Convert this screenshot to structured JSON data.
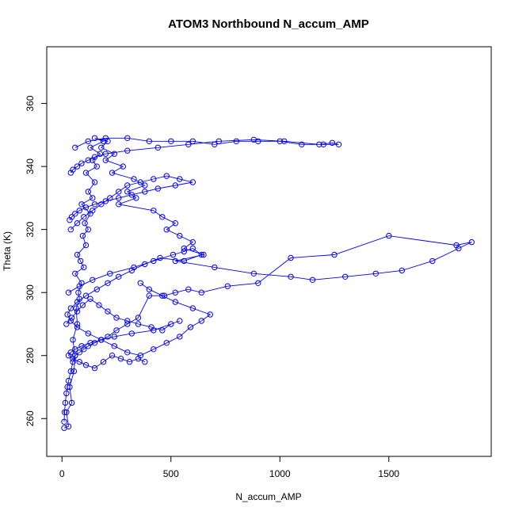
{
  "chart_data": {
    "type": "scatter",
    "title": "ATOM3 Northbound N_accum_AMP",
    "xlabel": "N_accum_AMP",
    "ylabel": "Theta (K)",
    "xlim": [
      -70,
      1970
    ],
    "ylim": [
      248,
      378
    ],
    "x_ticks": [
      0,
      500,
      1000,
      1500
    ],
    "y_ticks": [
      260,
      280,
      300,
      320,
      340,
      360
    ],
    "x_tick_labels": [
      "0",
      "500",
      "1000",
      "1500"
    ],
    "y_tick_labels": [
      "260",
      "280",
      "300",
      "320",
      "340",
      "360"
    ],
    "grid": false,
    "legend": "none",
    "marker": "open-circle",
    "connect_points": true,
    "color": "#0000ff",
    "series": [
      {
        "x": [
          10,
          30,
          20,
          45,
          35,
          55,
          60,
          50,
          70,
          65,
          80,
          75,
          90,
          60,
          100,
          85,
          70,
          110,
          95,
          120,
          105,
          130,
          90,
          140,
          120,
          150,
          110,
          160,
          140,
          175,
          130,
          190,
          150,
          210,
          180,
          240,
          200,
          280,
          230,
          330,
          380,
          300,
          340,
          260,
          420,
          460,
          520,
          480,
          540,
          600,
          560,
          650,
          520,
          700,
          880,
          1050,
          1150,
          1300,
          1440,
          1560,
          1700,
          1820,
          1880,
          1810,
          1500,
          1250,
          1050,
          900,
          760,
          640,
          580,
          520,
          470,
          400,
          350,
          300,
          250,
          210,
          180,
          150,
          120,
          100,
          80,
          60,
          50,
          40,
          30,
          25,
          20,
          15,
          12,
          10
        ],
        "y": [
          257,
          257.5,
          262,
          265,
          270,
          275,
          280,
          285,
          290,
          295,
          298,
          300,
          303,
          306,
          308,
          310,
          312,
          315,
          318,
          320,
          322,
          325,
          328,
          330,
          332,
          335,
          338,
          340,
          342,
          344,
          346,
          348,
          349,
          348,
          346,
          344,
          342,
          340,
          338,
          336,
          334,
          332,
          330,
          328,
          326,
          324,
          322,
          320,
          318,
          316,
          314,
          312,
          310,
          308,
          306,
          305,
          304,
          305,
          306,
          307,
          310,
          314,
          316,
          315,
          318,
          312,
          311,
          303,
          302,
          300,
          301,
          300,
          299,
          299,
          292,
          290,
          288,
          286,
          285,
          284,
          283,
          282,
          281,
          280,
          278,
          275,
          272,
          270,
          268,
          265,
          262,
          259
        ]
      },
      {
        "x": [
          60,
          120,
          200,
          300,
          400,
          500,
          600,
          700,
          800,
          900,
          1000,
          1100,
          1200,
          1270,
          1240,
          1180,
          1020,
          880,
          720,
          580,
          440,
          300,
          200,
          150,
          120,
          90,
          70,
          50,
          40
        ],
        "y": [
          346,
          348,
          349,
          349,
          348,
          348,
          348,
          347,
          348,
          348,
          348,
          347,
          347,
          347,
          347.5,
          347,
          348,
          348.5,
          348,
          347,
          346,
          345,
          344,
          343,
          342,
          341,
          340,
          339,
          338
        ]
      },
      {
        "x": [
          30,
          80,
          140,
          220,
          330,
          420,
          510,
          560,
          600,
          640,
          560,
          450,
          380,
          320,
          260,
          210,
          160,
          110,
          70,
          40,
          25,
          40,
          70,
          120,
          180,
          240,
          300,
          360,
          420,
          480,
          540,
          590,
          640,
          680,
          600,
          520,
          460,
          400,
          360
        ],
        "y": [
          300,
          302,
          304,
          306,
          308,
          310,
          312,
          313,
          314,
          312,
          310,
          311,
          309,
          307,
          305,
          303,
          301,
          299,
          297,
          295,
          293,
          291,
          289,
          287,
          285,
          283,
          281,
          280,
          282,
          284,
          286,
          289,
          291,
          293,
          295,
          297,
          299,
          301,
          303
        ]
      },
      {
        "x": [
          20,
          45,
          70,
          95,
          130,
          170,
          210,
          250,
          300,
          350,
          410,
          460,
          500,
          540,
          420,
          320,
          240,
          180,
          130,
          90,
          60,
          40,
          30,
          50,
          80,
          110,
          150,
          190,
          230,
          270,
          310,
          350,
          380
        ],
        "y": [
          290,
          292,
          294,
          296,
          298,
          296,
          294,
          292,
          291,
          290,
          289,
          288,
          290,
          291,
          288,
          287,
          286,
          285,
          284,
          283,
          282,
          281,
          280,
          279,
          278,
          277,
          276,
          278,
          280,
          279,
          278,
          279,
          278
        ]
      },
      {
        "x": [
          40,
          70,
          100,
          140,
          180,
          220,
          260,
          300,
          360,
          420,
          480,
          540,
          600,
          520,
          440,
          380,
          320,
          260,
          200,
          150,
          110,
          80,
          60,
          45,
          35
        ],
        "y": [
          320,
          322,
          324,
          326,
          328,
          330,
          332,
          334,
          335,
          336,
          337,
          336,
          335,
          334,
          333,
          332,
          331,
          330,
          329,
          328,
          327,
          326,
          325,
          324,
          323
        ]
      }
    ]
  }
}
